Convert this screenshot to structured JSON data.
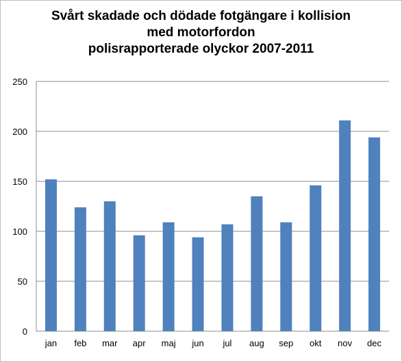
{
  "chart_data": {
    "type": "bar",
    "title_lines": [
      "Svårt skadade och dödade fotgängare i kollision",
      "med motorfordon",
      "polisrapporterade olyckor 2007-2011"
    ],
    "categories": [
      "jan",
      "feb",
      "mar",
      "apr",
      "maj",
      "jun",
      "jul",
      "aug",
      "sep",
      "okt",
      "nov",
      "dec"
    ],
    "values": [
      152,
      124,
      130,
      96,
      109,
      94,
      107,
      135,
      109,
      146,
      211,
      194
    ],
    "ylim": [
      0,
      250
    ],
    "yticks": [
      0,
      50,
      100,
      150,
      200,
      250
    ],
    "grid": true,
    "legend": "none",
    "bar_color": "#4f81bd",
    "grid_color": "#8c8c8c"
  }
}
